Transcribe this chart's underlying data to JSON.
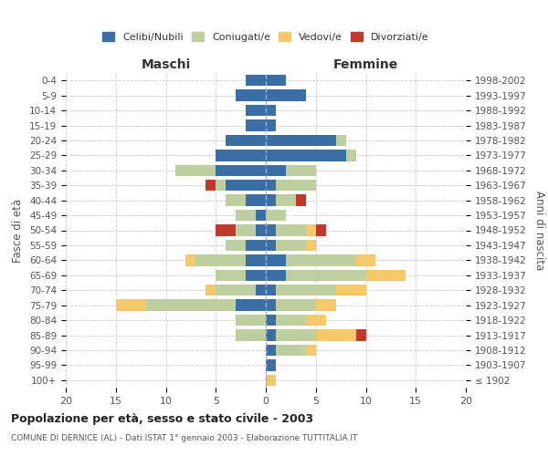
{
  "age_groups": [
    "100+",
    "95-99",
    "90-94",
    "85-89",
    "80-84",
    "75-79",
    "70-74",
    "65-69",
    "60-64",
    "55-59",
    "50-54",
    "45-49",
    "40-44",
    "35-39",
    "30-34",
    "25-29",
    "20-24",
    "15-19",
    "10-14",
    "5-9",
    "0-4"
  ],
  "birth_years": [
    "≤ 1902",
    "1903-1907",
    "1908-1912",
    "1913-1917",
    "1918-1922",
    "1923-1927",
    "1928-1932",
    "1933-1937",
    "1938-1942",
    "1943-1947",
    "1948-1952",
    "1953-1957",
    "1958-1962",
    "1963-1967",
    "1968-1972",
    "1973-1977",
    "1978-1982",
    "1983-1987",
    "1988-1992",
    "1993-1997",
    "1998-2002"
  ],
  "male": {
    "celibi": [
      0,
      0,
      0,
      0,
      0,
      3,
      1,
      2,
      2,
      2,
      1,
      1,
      2,
      4,
      5,
      5,
      4,
      2,
      2,
      3,
      2
    ],
    "coniugati": [
      0,
      0,
      0,
      3,
      3,
      9,
      4,
      3,
      5,
      2,
      2,
      2,
      2,
      1,
      4,
      0,
      0,
      0,
      0,
      0,
      0
    ],
    "vedovi": [
      0,
      0,
      0,
      0,
      0,
      3,
      1,
      0,
      1,
      0,
      0,
      0,
      0,
      0,
      0,
      0,
      0,
      0,
      0,
      0,
      0
    ],
    "divorziati": [
      0,
      0,
      0,
      0,
      0,
      0,
      0,
      0,
      0,
      0,
      2,
      0,
      0,
      1,
      0,
      0,
      0,
      0,
      0,
      0,
      0
    ]
  },
  "female": {
    "nubili": [
      0,
      1,
      1,
      1,
      1,
      1,
      1,
      2,
      2,
      1,
      1,
      0,
      1,
      1,
      2,
      8,
      7,
      1,
      1,
      4,
      2
    ],
    "coniugate": [
      0,
      0,
      3,
      4,
      3,
      4,
      6,
      8,
      7,
      3,
      3,
      2,
      2,
      4,
      3,
      1,
      1,
      0,
      0,
      0,
      0
    ],
    "vedove": [
      1,
      0,
      1,
      4,
      2,
      2,
      3,
      4,
      2,
      1,
      1,
      0,
      0,
      0,
      0,
      0,
      0,
      0,
      0,
      0,
      0
    ],
    "divorziate": [
      0,
      0,
      0,
      1,
      0,
      0,
      0,
      0,
      0,
      0,
      1,
      0,
      1,
      0,
      0,
      0,
      0,
      0,
      0,
      0,
      0
    ]
  },
  "colors": {
    "celibi": "#3A6EA5",
    "coniugati": "#BDCF9E",
    "vedovi": "#F5C96A",
    "divorziati": "#C0392B"
  },
  "xlim": 20,
  "title": "Popolazione per età, sesso e stato civile - 2003",
  "subtitle": "COMUNE DI DERNICE (AL) - Dati ISTAT 1° gennaio 2003 - Elaborazione TUTTITALIA.IT",
  "ylabel_left": "Fasce di età",
  "ylabel_right": "Anni di nascita",
  "xlabel_maschi": "Maschi",
  "xlabel_femmine": "Femmine",
  "bg_color": "#FFFFFF",
  "grid_color": "#CCCCCC"
}
